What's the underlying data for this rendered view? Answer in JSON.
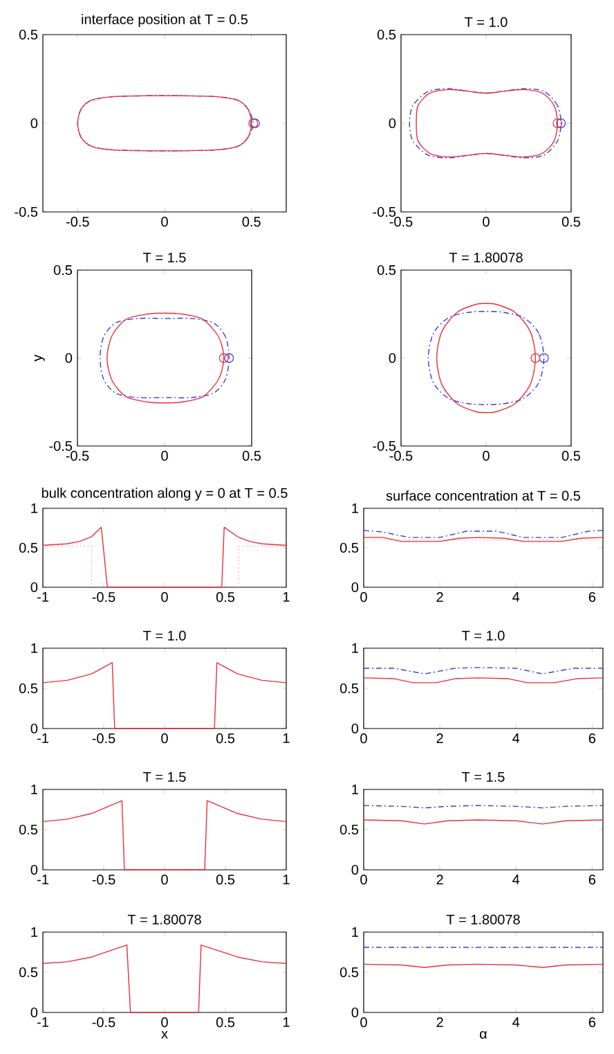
{
  "chart_data": [
    {
      "type": "line",
      "title": "interface position at T = 0.5",
      "xlim": [
        -0.7,
        0.7
      ],
      "ylim": [
        -0.5,
        0.5
      ],
      "xticks": [
        -0.5,
        0,
        0.5
      ],
      "yticks": [
        -0.5,
        0,
        0.5
      ],
      "series": [
        {
          "type": "scatter",
          "marker": "circle",
          "color": "#3a3ae0",
          "x": [
            0.52
          ],
          "values": [
            0
          ]
        },
        {
          "type": "scatter",
          "marker": "circle",
          "color": "#e8303a",
          "x": [
            0.51
          ],
          "values": [
            0
          ]
        }
      ]
    },
    {
      "type": "line",
      "title": "T = 1.0",
      "xlim": [
        -0.5,
        0.5
      ],
      "ylim": [
        -0.5,
        0.5
      ],
      "xticks": [
        -0.5,
        0,
        0.5
      ],
      "yticks": [
        -0.5,
        0,
        0.5
      ],
      "series": [
        {
          "type": "scatter",
          "marker": "circle",
          "color": "#3a3ae0",
          "x": [
            0.44
          ],
          "values": [
            0
          ]
        },
        {
          "type": "scatter",
          "marker": "circle",
          "color": "#e8303a",
          "x": [
            0.42
          ],
          "values": [
            0
          ]
        }
      ]
    },
    {
      "type": "line",
      "title": "T = 1.5",
      "ylabel": "y",
      "xlim": [
        -0.5,
        0.5
      ],
      "ylim": [
        -0.5,
        0.5
      ],
      "xticks": [
        -0.5,
        0,
        0.5
      ],
      "yticks": [
        -0.5,
        0,
        0.5
      ],
      "series": [
        {
          "type": "scatter",
          "marker": "circle",
          "color": "#3a3ae0",
          "x": [
            0.37
          ],
          "values": [
            0
          ]
        },
        {
          "type": "scatter",
          "marker": "circle",
          "color": "#e8303a",
          "x": [
            0.34
          ],
          "values": [
            0
          ]
        }
      ]
    },
    {
      "type": "line",
      "title": "T = 1.80078",
      "xlim": [
        -0.5,
        0.5
      ],
      "ylim": [
        -0.5,
        0.5
      ],
      "xticks": [
        -0.5,
        0,
        0.5
      ],
      "yticks": [
        -0.5,
        0,
        0.5
      ],
      "series": [
        {
          "type": "scatter",
          "marker": "circle",
          "color": "#3a3ae0",
          "x": [
            0.34
          ],
          "values": [
            0
          ]
        },
        {
          "type": "scatter",
          "marker": "circle",
          "color": "#e8303a",
          "x": [
            0.29
          ],
          "values": [
            0
          ]
        }
      ]
    },
    {
      "type": "line",
      "title": "bulk concentration along y = 0 at T = 0.5",
      "xlim": [
        -1,
        1
      ],
      "ylim": [
        0,
        1
      ],
      "xticks": [
        -1,
        -0.5,
        0,
        0.5,
        1
      ],
      "yticks": [
        0,
        0.5,
        1
      ],
      "series": [
        {
          "color": "#f0a0a8",
          "line_style": "dotted",
          "x": [
            -1,
            -0.6,
            -0.6,
            0,
            0.61,
            0.61,
            1
          ],
          "values": [
            0.52,
            0.52,
            0,
            null,
            0,
            0.52,
            0.52
          ]
        },
        {
          "color": "#e8303a",
          "line_style": "solid",
          "x": [
            -1,
            -0.8,
            -0.7,
            -0.6,
            -0.52,
            -0.47,
            0.47,
            0.49,
            0.6,
            0.7,
            0.8,
            1
          ],
          "values": [
            0.53,
            0.55,
            0.58,
            0.64,
            0.76,
            0,
            0,
            0.76,
            0.64,
            0.58,
            0.55,
            0.53
          ]
        }
      ]
    },
    {
      "type": "line",
      "title": "surface concentration at T = 0.5",
      "xlim": [
        0,
        6.2832
      ],
      "ylim": [
        0,
        1
      ],
      "xticks": [
        0,
        2,
        4,
        6
      ],
      "yticks": [
        0,
        0.5,
        1
      ],
      "series": [
        {
          "color": "#f0a0a8",
          "line_style": "dotted",
          "x": [
            0,
            6.2832
          ],
          "values": [
            0.6,
            0.6
          ]
        },
        {
          "color": "#3a3ae0",
          "line_style": "dashed",
          "x": [
            0,
            0.5,
            1.2,
            2,
            2.7,
            3.5,
            4.2,
            5.2,
            5.9,
            6.2832
          ],
          "values": [
            0.72,
            0.7,
            0.63,
            0.63,
            0.71,
            0.71,
            0.63,
            0.63,
            0.71,
            0.72
          ]
        },
        {
          "color": "#e8303a",
          "line_style": "solid",
          "x": [
            0,
            0.5,
            1,
            2,
            2.5,
            3,
            3.7,
            4.2,
            5.2,
            5.7,
            6.2832
          ],
          "values": [
            0.63,
            0.63,
            0.58,
            0.58,
            0.62,
            0.63,
            0.62,
            0.58,
            0.58,
            0.62,
            0.63
          ]
        }
      ]
    },
    {
      "type": "line",
      "title": "T = 1.0",
      "xlim": [
        -1,
        1
      ],
      "ylim": [
        0,
        1
      ],
      "xticks": [
        -1,
        -0.5,
        0,
        0.5,
        1
      ],
      "yticks": [
        0,
        0.5,
        1
      ],
      "series": [
        {
          "color": "#e8303a",
          "line_style": "solid",
          "x": [
            -1,
            -0.8,
            -0.6,
            -0.43,
            -0.41,
            0.41,
            0.43,
            0.6,
            0.8,
            1
          ],
          "values": [
            0.57,
            0.6,
            0.68,
            0.82,
            0,
            0,
            0.82,
            0.68,
            0.6,
            0.57
          ]
        }
      ]
    },
    {
      "type": "line",
      "title": "T = 1.0",
      "xlim": [
        0,
        6.2832
      ],
      "ylim": [
        0,
        1
      ],
      "xticks": [
        0,
        2,
        4,
        6
      ],
      "yticks": [
        0,
        0.5,
        1
      ],
      "series": [
        {
          "color": "#3a3ae0",
          "line_style": "dashed",
          "x": [
            0,
            0.8,
            1.6,
            2.4,
            3,
            4,
            4.7,
            5.5,
            6.2832
          ],
          "values": [
            0.75,
            0.75,
            0.68,
            0.75,
            0.76,
            0.75,
            0.68,
            0.75,
            0.75
          ]
        },
        {
          "color": "#e8303a",
          "line_style": "solid",
          "x": [
            0,
            0.8,
            1.3,
            1.9,
            2.4,
            3,
            3.8,
            4.3,
            5,
            5.6,
            6.2832
          ],
          "values": [
            0.63,
            0.62,
            0.57,
            0.57,
            0.62,
            0.63,
            0.62,
            0.57,
            0.57,
            0.62,
            0.63
          ]
        }
      ]
    },
    {
      "type": "line",
      "title": "T = 1.5",
      "xlim": [
        -1,
        1
      ],
      "ylim": [
        0,
        1
      ],
      "xticks": [
        -1,
        -0.5,
        0,
        0.5,
        1
      ],
      "yticks": [
        0,
        0.5,
        1
      ],
      "series": [
        {
          "color": "#e8303a",
          "line_style": "solid",
          "x": [
            -1,
            -0.8,
            -0.6,
            -0.35,
            -0.33,
            0.33,
            0.35,
            0.6,
            0.8,
            1
          ],
          "values": [
            0.6,
            0.63,
            0.7,
            0.86,
            0,
            0,
            0.86,
            0.7,
            0.63,
            0.6
          ]
        }
      ]
    },
    {
      "type": "line",
      "title": "T = 1.5",
      "xlim": [
        0,
        6.2832
      ],
      "ylim": [
        0,
        1
      ],
      "xticks": [
        0,
        2,
        4,
        6
      ],
      "yticks": [
        0,
        0.5,
        1
      ],
      "series": [
        {
          "color": "#3a3ae0",
          "line_style": "dashed",
          "x": [
            0,
            1,
            1.6,
            2.2,
            3,
            4,
            4.7,
            5.3,
            6.2832
          ],
          "values": [
            0.8,
            0.79,
            0.77,
            0.79,
            0.8,
            0.79,
            0.77,
            0.79,
            0.8
          ]
        },
        {
          "color": "#e8303a",
          "line_style": "solid",
          "x": [
            0,
            1,
            1.6,
            2.2,
            3,
            4,
            4.7,
            5.3,
            6.2832
          ],
          "values": [
            0.62,
            0.61,
            0.57,
            0.61,
            0.62,
            0.61,
            0.57,
            0.61,
            0.62
          ]
        }
      ]
    },
    {
      "type": "line",
      "title": "T = 1.80078",
      "xlabel": "x",
      "xlim": [
        -1,
        1
      ],
      "ylim": [
        0,
        1
      ],
      "xticks": [
        -1,
        -0.5,
        0,
        0.5,
        1
      ],
      "yticks": [
        0,
        0.5,
        1
      ],
      "series": [
        {
          "color": "#e8303a",
          "line_style": "solid",
          "x": [
            -1,
            -0.8,
            -0.6,
            -0.31,
            -0.28,
            0.28,
            0.3,
            0.6,
            0.8,
            1
          ],
          "values": [
            0.61,
            0.63,
            0.69,
            0.84,
            0,
            0,
            0.84,
            0.69,
            0.63,
            0.61
          ]
        }
      ]
    },
    {
      "type": "line",
      "title": "T = 1.80078",
      "xlabel": "α",
      "xlim": [
        0,
        6.2832
      ],
      "ylim": [
        0,
        1
      ],
      "xticks": [
        0,
        2,
        4,
        6
      ],
      "yticks": [
        0,
        0.5,
        1
      ],
      "series": [
        {
          "color": "#3a3ae0",
          "line_style": "dashed",
          "x": [
            0,
            6.2832
          ],
          "values": [
            0.81,
            0.81
          ]
        },
        {
          "color": "#e8303a",
          "line_style": "solid",
          "x": [
            0,
            1,
            1.6,
            2.2,
            3,
            4,
            4.7,
            5.3,
            6.2832
          ],
          "values": [
            0.6,
            0.59,
            0.56,
            0.59,
            0.6,
            0.59,
            0.56,
            0.59,
            0.6
          ]
        }
      ]
    }
  ]
}
